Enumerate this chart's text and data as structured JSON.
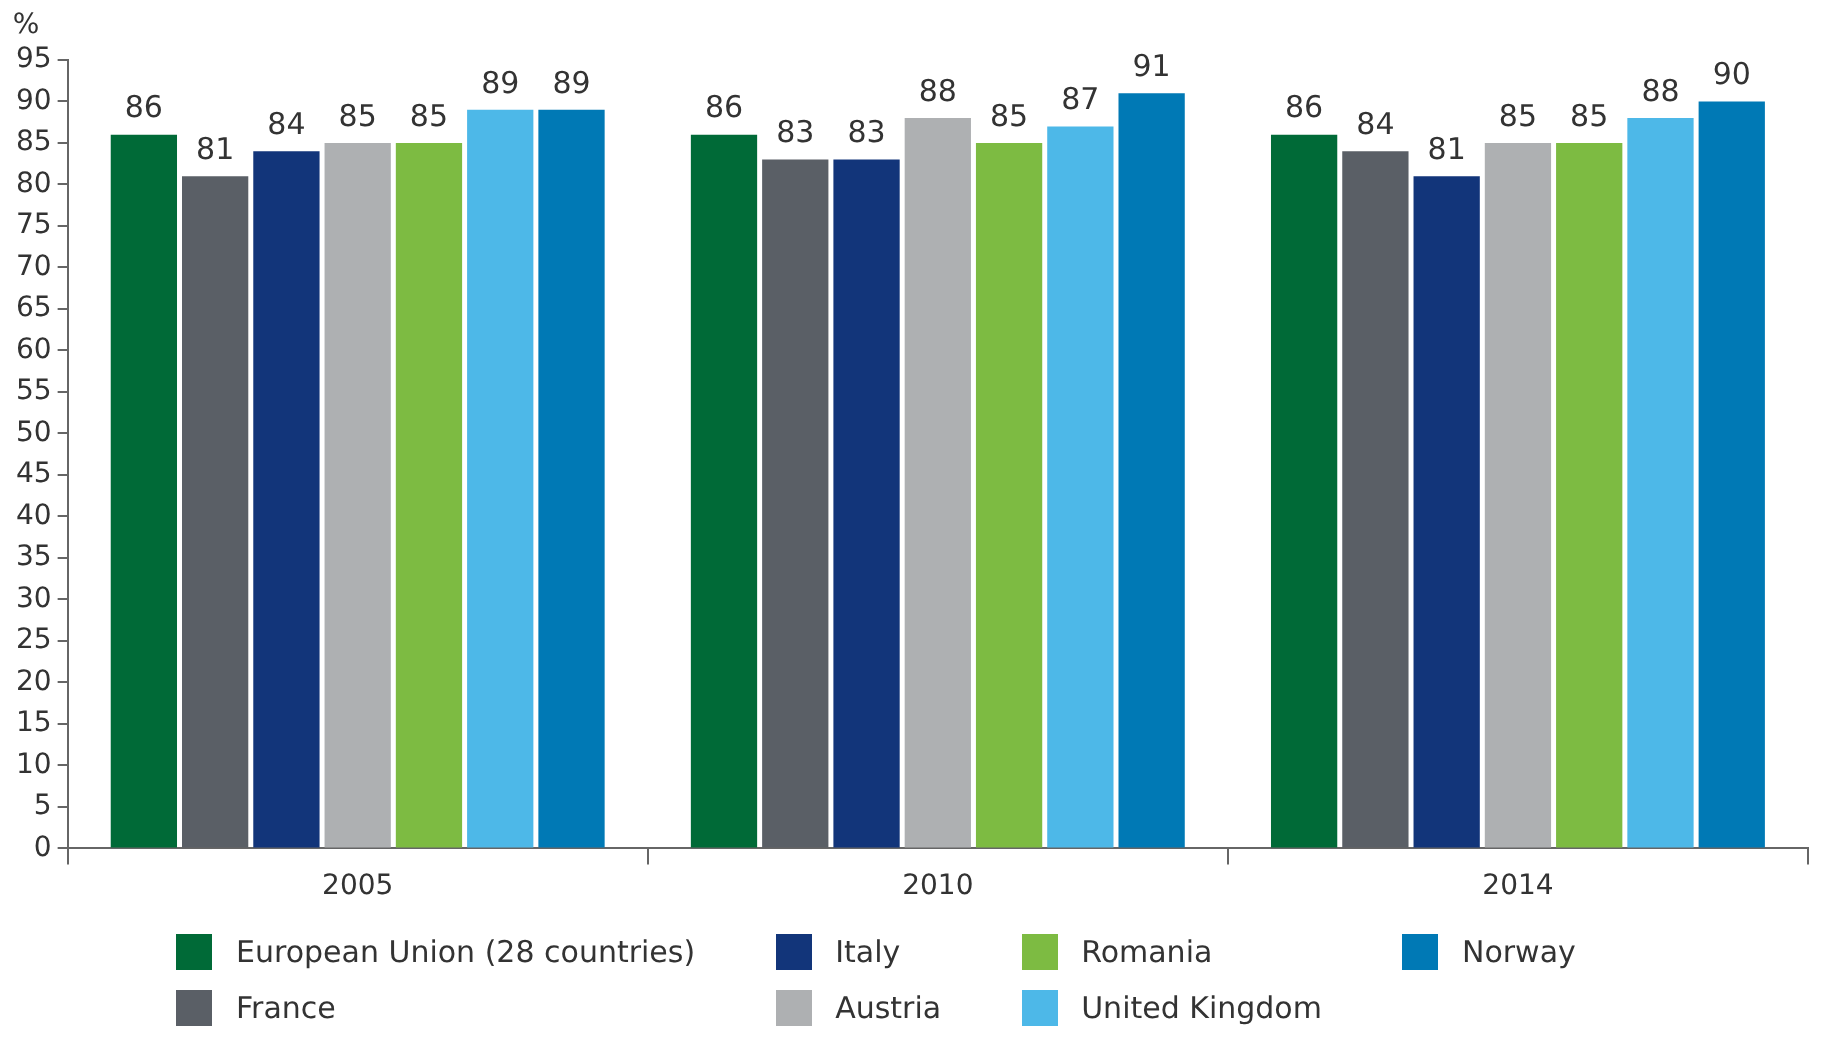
{
  "chart_data": {
    "type": "bar",
    "ylabel": "%",
    "categories": [
      "2005",
      "2010",
      "2014"
    ],
    "series": [
      {
        "name": "European Union (28 countries)",
        "color": "#006a37",
        "values": [
          86,
          86,
          86
        ]
      },
      {
        "name": "France",
        "color": "#5a5f66",
        "values": [
          81,
          83,
          84
        ]
      },
      {
        "name": "Italy",
        "color": "#12357a",
        "values": [
          84,
          83,
          81
        ]
      },
      {
        "name": "Austria",
        "color": "#aeb0b2",
        "values": [
          85,
          88,
          85
        ]
      },
      {
        "name": "Romania",
        "color": "#7dbb42",
        "values": [
          85,
          85,
          85
        ]
      },
      {
        "name": "United Kingdom",
        "color": "#4db8e8",
        "values": [
          89,
          87,
          88
        ]
      },
      {
        "name": "Norway",
        "color": "#0079b5",
        "values": [
          89,
          91,
          90
        ]
      }
    ],
    "ylim": [
      0,
      95
    ],
    "yticks": [
      0,
      5,
      10,
      15,
      20,
      25,
      30,
      35,
      40,
      45,
      50,
      55,
      60,
      65,
      70,
      75,
      80,
      85,
      90,
      95
    ],
    "grid": false,
    "legend": "bottom",
    "data_labels": true
  }
}
